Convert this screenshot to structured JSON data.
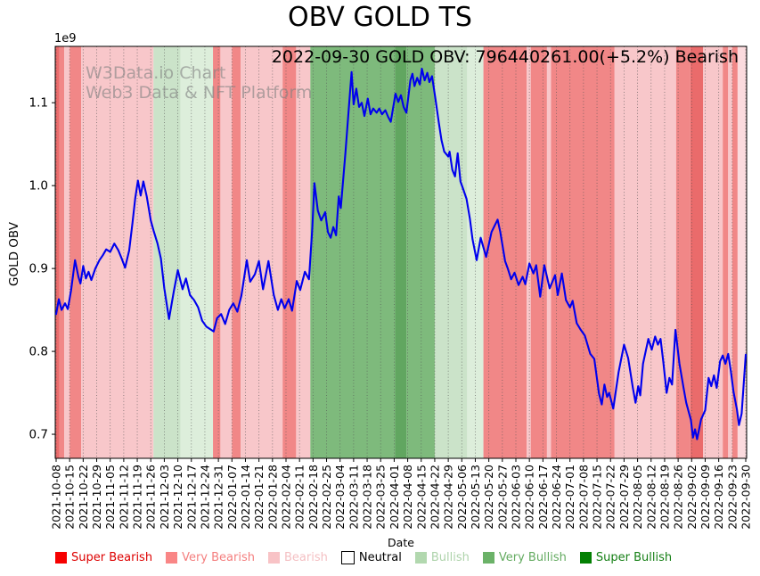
{
  "title": "OBV GOLD TS",
  "annotation": "2022-09-30 GOLD OBV: 796440261.00(+5.2%) Bearish",
  "watermark": {
    "line1": "W3Data.io Chart",
    "line2": "Web3 Data & NFT Platform"
  },
  "colors": {
    "line": "#0000ee",
    "very_bearish_dark": "#ea6b6b",
    "very_bearish": "#f18787",
    "bearish": "#f8c7ca",
    "bearish_light": "#fbdbde",
    "bullish": "#cbe3c9",
    "bullish_light": "#ddeedb",
    "very_bullish": "#7eba7c",
    "very_bullish_dark": "#61a660",
    "super_bullish": "#038003",
    "grid": "#555555",
    "axis": "#000000"
  },
  "legend": {
    "items": [
      {
        "label": "Super Bearish",
        "swatch": "#f60000",
        "text": "#dd0000",
        "border": false
      },
      {
        "label": "Very Bearish",
        "swatch": "#f98686",
        "text": "#f47e7e",
        "border": false
      },
      {
        "label": "Bearish",
        "swatch": "#f8c3c6",
        "text": "#f4bfc2",
        "border": false
      },
      {
        "label": "Neutral",
        "swatch": "#ffffff",
        "text": "#000000",
        "border": true
      },
      {
        "label": "Bullish",
        "swatch": "#b2d8af",
        "text": "#aed3ab",
        "border": false
      },
      {
        "label": "Very Bullish",
        "swatch": "#6bb268",
        "text": "#64ab61",
        "border": false
      },
      {
        "label": "Super Bullish",
        "swatch": "#038003",
        "text": "#157f15",
        "border": false
      }
    ]
  },
  "chart_data": {
    "type": "line",
    "title": "OBV GOLD TS",
    "xlabel": "Date",
    "ylabel": "GOLD OBV",
    "y_offset_label": "1e9",
    "y_ticks": [
      0.7,
      0.8,
      0.9,
      1.0,
      1.1
    ],
    "ylim": [
      0.671,
      1.168
    ],
    "grid": "dotted-vertical",
    "legend_position": "bottom",
    "x_tick_labels": [
      "2021-10-08",
      "2021-10-15",
      "2021-10-22",
      "2021-10-29",
      "2021-11-05",
      "2021-11-12",
      "2021-11-19",
      "2021-11-26",
      "2021-12-03",
      "2021-12-10",
      "2021-12-17",
      "2021-12-24",
      "2021-12-31",
      "2022-01-07",
      "2022-01-14",
      "2022-01-21",
      "2022-01-28",
      "2022-02-04",
      "2022-02-11",
      "2022-02-18",
      "2022-02-25",
      "2022-03-04",
      "2022-03-11",
      "2022-03-18",
      "2022-03-25",
      "2022-04-01",
      "2022-04-08",
      "2022-04-15",
      "2022-04-22",
      "2022-04-29",
      "2022-05-06",
      "2022-05-13",
      "2022-05-20",
      "2022-05-27",
      "2022-06-03",
      "2022-06-10",
      "2022-06-17",
      "2022-06-24",
      "2022-07-01",
      "2022-07-08",
      "2022-07-15",
      "2022-07-22",
      "2022-07-29",
      "2022-08-05",
      "2022-08-12",
      "2022-08-19",
      "2022-08-26",
      "2022-09-02",
      "2022-09-09",
      "2022-09-16",
      "2022-09-23",
      "2022-09-30"
    ],
    "x_unit": "week index (0 = 2021-10-08)",
    "y_unit": "GOLD OBV x 1e9",
    "points": [
      [
        0,
        0.845
      ],
      [
        0.2,
        0.863
      ],
      [
        0.4,
        0.85
      ],
      [
        0.66,
        0.858
      ],
      [
        0.86,
        0.851
      ],
      [
        1.1,
        0.873
      ],
      [
        1.4,
        0.91
      ],
      [
        1.65,
        0.89
      ],
      [
        1.8,
        0.882
      ],
      [
        2.0,
        0.903
      ],
      [
        2.2,
        0.888
      ],
      [
        2.4,
        0.896
      ],
      [
        2.6,
        0.886
      ],
      [
        2.9,
        0.9
      ],
      [
        3.2,
        0.91
      ],
      [
        3.45,
        0.916
      ],
      [
        3.7,
        0.923
      ],
      [
        4.0,
        0.92
      ],
      [
        4.3,
        0.93
      ],
      [
        4.6,
        0.922
      ],
      [
        4.85,
        0.912
      ],
      [
        5.1,
        0.901
      ],
      [
        5.4,
        0.922
      ],
      [
        5.65,
        0.955
      ],
      [
        5.85,
        0.985
      ],
      [
        6.05,
        1.006
      ],
      [
        6.25,
        0.988
      ],
      [
        6.45,
        1.005
      ],
      [
        6.7,
        0.987
      ],
      [
        7.0,
        0.958
      ],
      [
        7.2,
        0.946
      ],
      [
        7.5,
        0.93
      ],
      [
        7.75,
        0.912
      ],
      [
        8.0,
        0.876
      ],
      [
        8.35,
        0.839
      ],
      [
        8.7,
        0.872
      ],
      [
        9.0,
        0.898
      ],
      [
        9.35,
        0.875
      ],
      [
        9.6,
        0.888
      ],
      [
        9.9,
        0.868
      ],
      [
        10.2,
        0.862
      ],
      [
        10.5,
        0.853
      ],
      [
        10.8,
        0.837
      ],
      [
        11.1,
        0.83
      ],
      [
        11.65,
        0.824
      ],
      [
        11.9,
        0.84
      ],
      [
        12.2,
        0.845
      ],
      [
        12.5,
        0.833
      ],
      [
        12.8,
        0.85
      ],
      [
        13.1,
        0.858
      ],
      [
        13.4,
        0.848
      ],
      [
        13.7,
        0.867
      ],
      [
        14.1,
        0.91
      ],
      [
        14.35,
        0.884
      ],
      [
        14.7,
        0.893
      ],
      [
        15.0,
        0.909
      ],
      [
        15.3,
        0.875
      ],
      [
        15.7,
        0.909
      ],
      [
        16.1,
        0.868
      ],
      [
        16.4,
        0.85
      ],
      [
        16.65,
        0.863
      ],
      [
        16.9,
        0.852
      ],
      [
        17.2,
        0.863
      ],
      [
        17.45,
        0.849
      ],
      [
        17.8,
        0.885
      ],
      [
        18.05,
        0.874
      ],
      [
        18.4,
        0.896
      ],
      [
        18.7,
        0.887
      ],
      [
        18.95,
        0.95
      ],
      [
        19.1,
        1.003
      ],
      [
        19.35,
        0.97
      ],
      [
        19.6,
        0.958
      ],
      [
        19.9,
        0.968
      ],
      [
        20.1,
        0.944
      ],
      [
        20.3,
        0.937
      ],
      [
        20.5,
        0.95
      ],
      [
        20.7,
        0.94
      ],
      [
        20.9,
        0.987
      ],
      [
        21.05,
        0.973
      ],
      [
        21.4,
        1.041
      ],
      [
        21.65,
        1.095
      ],
      [
        21.85,
        1.137
      ],
      [
        22.0,
        1.098
      ],
      [
        22.2,
        1.117
      ],
      [
        22.4,
        1.095
      ],
      [
        22.6,
        1.1
      ],
      [
        22.8,
        1.084
      ],
      [
        23.05,
        1.105
      ],
      [
        23.25,
        1.086
      ],
      [
        23.45,
        1.093
      ],
      [
        23.7,
        1.088
      ],
      [
        23.9,
        1.093
      ],
      [
        24.1,
        1.086
      ],
      [
        24.35,
        1.091
      ],
      [
        24.55,
        1.083
      ],
      [
        24.75,
        1.077
      ],
      [
        25.1,
        1.111
      ],
      [
        25.3,
        1.101
      ],
      [
        25.5,
        1.109
      ],
      [
        25.7,
        1.095
      ],
      [
        25.9,
        1.088
      ],
      [
        26.2,
        1.127
      ],
      [
        26.35,
        1.135
      ],
      [
        26.5,
        1.12
      ],
      [
        26.7,
        1.13
      ],
      [
        26.9,
        1.122
      ],
      [
        27.05,
        1.141
      ],
      [
        27.25,
        1.127
      ],
      [
        27.45,
        1.136
      ],
      [
        27.6,
        1.125
      ],
      [
        27.8,
        1.132
      ],
      [
        28.05,
        1.105
      ],
      [
        28.3,
        1.076
      ],
      [
        28.5,
        1.055
      ],
      [
        28.7,
        1.041
      ],
      [
        29.0,
        1.035
      ],
      [
        29.1,
        1.041
      ],
      [
        29.3,
        1.019
      ],
      [
        29.5,
        1.011
      ],
      [
        29.7,
        1.039
      ],
      [
        29.9,
        1.005
      ],
      [
        30.1,
        0.996
      ],
      [
        30.35,
        0.984
      ],
      [
        30.6,
        0.96
      ],
      [
        30.8,
        0.935
      ],
      [
        31.1,
        0.91
      ],
      [
        31.4,
        0.937
      ],
      [
        31.8,
        0.914
      ],
      [
        32.2,
        0.944
      ],
      [
        32.65,
        0.959
      ],
      [
        32.85,
        0.944
      ],
      [
        33.2,
        0.909
      ],
      [
        33.4,
        0.9
      ],
      [
        33.65,
        0.887
      ],
      [
        33.9,
        0.895
      ],
      [
        34.2,
        0.88
      ],
      [
        34.5,
        0.89
      ],
      [
        34.7,
        0.881
      ],
      [
        35.0,
        0.906
      ],
      [
        35.3,
        0.894
      ],
      [
        35.5,
        0.904
      ],
      [
        35.8,
        0.866
      ],
      [
        36.1,
        0.904
      ],
      [
        36.5,
        0.876
      ],
      [
        36.9,
        0.892
      ],
      [
        37.1,
        0.868
      ],
      [
        37.4,
        0.894
      ],
      [
        37.7,
        0.862
      ],
      [
        38.0,
        0.853
      ],
      [
        38.2,
        0.861
      ],
      [
        38.5,
        0.834
      ],
      [
        38.8,
        0.826
      ],
      [
        39.1,
        0.819
      ],
      [
        39.5,
        0.797
      ],
      [
        39.8,
        0.791
      ],
      [
        40.15,
        0.749
      ],
      [
        40.35,
        0.736
      ],
      [
        40.55,
        0.76
      ],
      [
        40.75,
        0.745
      ],
      [
        40.9,
        0.75
      ],
      [
        41.2,
        0.731
      ],
      [
        41.6,
        0.775
      ],
      [
        42.0,
        0.808
      ],
      [
        42.3,
        0.792
      ],
      [
        42.65,
        0.756
      ],
      [
        42.85,
        0.738
      ],
      [
        43.05,
        0.758
      ],
      [
        43.2,
        0.747
      ],
      [
        43.4,
        0.785
      ],
      [
        43.8,
        0.815
      ],
      [
        44.05,
        0.802
      ],
      [
        44.3,
        0.818
      ],
      [
        44.5,
        0.808
      ],
      [
        44.7,
        0.815
      ],
      [
        44.9,
        0.788
      ],
      [
        45.15,
        0.75
      ],
      [
        45.35,
        0.768
      ],
      [
        45.55,
        0.76
      ],
      [
        45.8,
        0.826
      ],
      [
        46.1,
        0.785
      ],
      [
        46.4,
        0.756
      ],
      [
        46.6,
        0.738
      ],
      [
        46.95,
        0.717
      ],
      [
        47.1,
        0.696
      ],
      [
        47.25,
        0.706
      ],
      [
        47.4,
        0.694
      ],
      [
        47.7,
        0.718
      ],
      [
        48.0,
        0.729
      ],
      [
        48.25,
        0.768
      ],
      [
        48.45,
        0.758
      ],
      [
        48.65,
        0.771
      ],
      [
        48.85,
        0.756
      ],
      [
        49.1,
        0.788
      ],
      [
        49.3,
        0.795
      ],
      [
        49.5,
        0.785
      ],
      [
        49.7,
        0.797
      ],
      [
        49.9,
        0.776
      ],
      [
        50.1,
        0.751
      ],
      [
        50.35,
        0.73
      ],
      [
        50.5,
        0.711
      ],
      [
        50.7,
        0.725
      ],
      [
        51.0,
        0.796
      ]
    ],
    "bands": [
      [
        -0.1,
        0.25,
        "very_bearish_dark"
      ],
      [
        0.25,
        0.6,
        "very_bearish"
      ],
      [
        0.6,
        1.0,
        "bearish"
      ],
      [
        1.0,
        1.85,
        "very_bearish"
      ],
      [
        1.85,
        7.2,
        "bearish"
      ],
      [
        7.2,
        9.2,
        "bullish"
      ],
      [
        9.2,
        11.6,
        "bullish_light"
      ],
      [
        11.6,
        12.15,
        "very_bearish"
      ],
      [
        12.15,
        13.0,
        "bearish"
      ],
      [
        13.0,
        13.65,
        "very_bearish"
      ],
      [
        13.65,
        16.75,
        "bearish"
      ],
      [
        16.75,
        17.75,
        "very_bearish"
      ],
      [
        17.75,
        18.8,
        "bearish"
      ],
      [
        18.8,
        25.05,
        "very_bullish"
      ],
      [
        25.05,
        25.9,
        "very_bullish_dark"
      ],
      [
        25.9,
        28.0,
        "very_bullish"
      ],
      [
        28.0,
        30.4,
        "bullish"
      ],
      [
        30.4,
        31.6,
        "bullish_light"
      ],
      [
        31.6,
        34.8,
        "very_bearish"
      ],
      [
        34.8,
        35.1,
        "bearish"
      ],
      [
        35.1,
        36.3,
        "very_bearish"
      ],
      [
        36.3,
        36.6,
        "bearish"
      ],
      [
        36.6,
        41.3,
        "very_bearish"
      ],
      [
        41.3,
        45.85,
        "bearish"
      ],
      [
        45.85,
        46.9,
        "very_bearish"
      ],
      [
        46.9,
        47.85,
        "very_bearish_dark"
      ],
      [
        47.85,
        49.3,
        "bearish"
      ],
      [
        49.3,
        49.7,
        "very_bearish"
      ],
      [
        49.7,
        50.0,
        "bearish"
      ],
      [
        50.0,
        50.4,
        "very_bearish"
      ],
      [
        50.4,
        51.15,
        "bearish_light"
      ]
    ]
  }
}
